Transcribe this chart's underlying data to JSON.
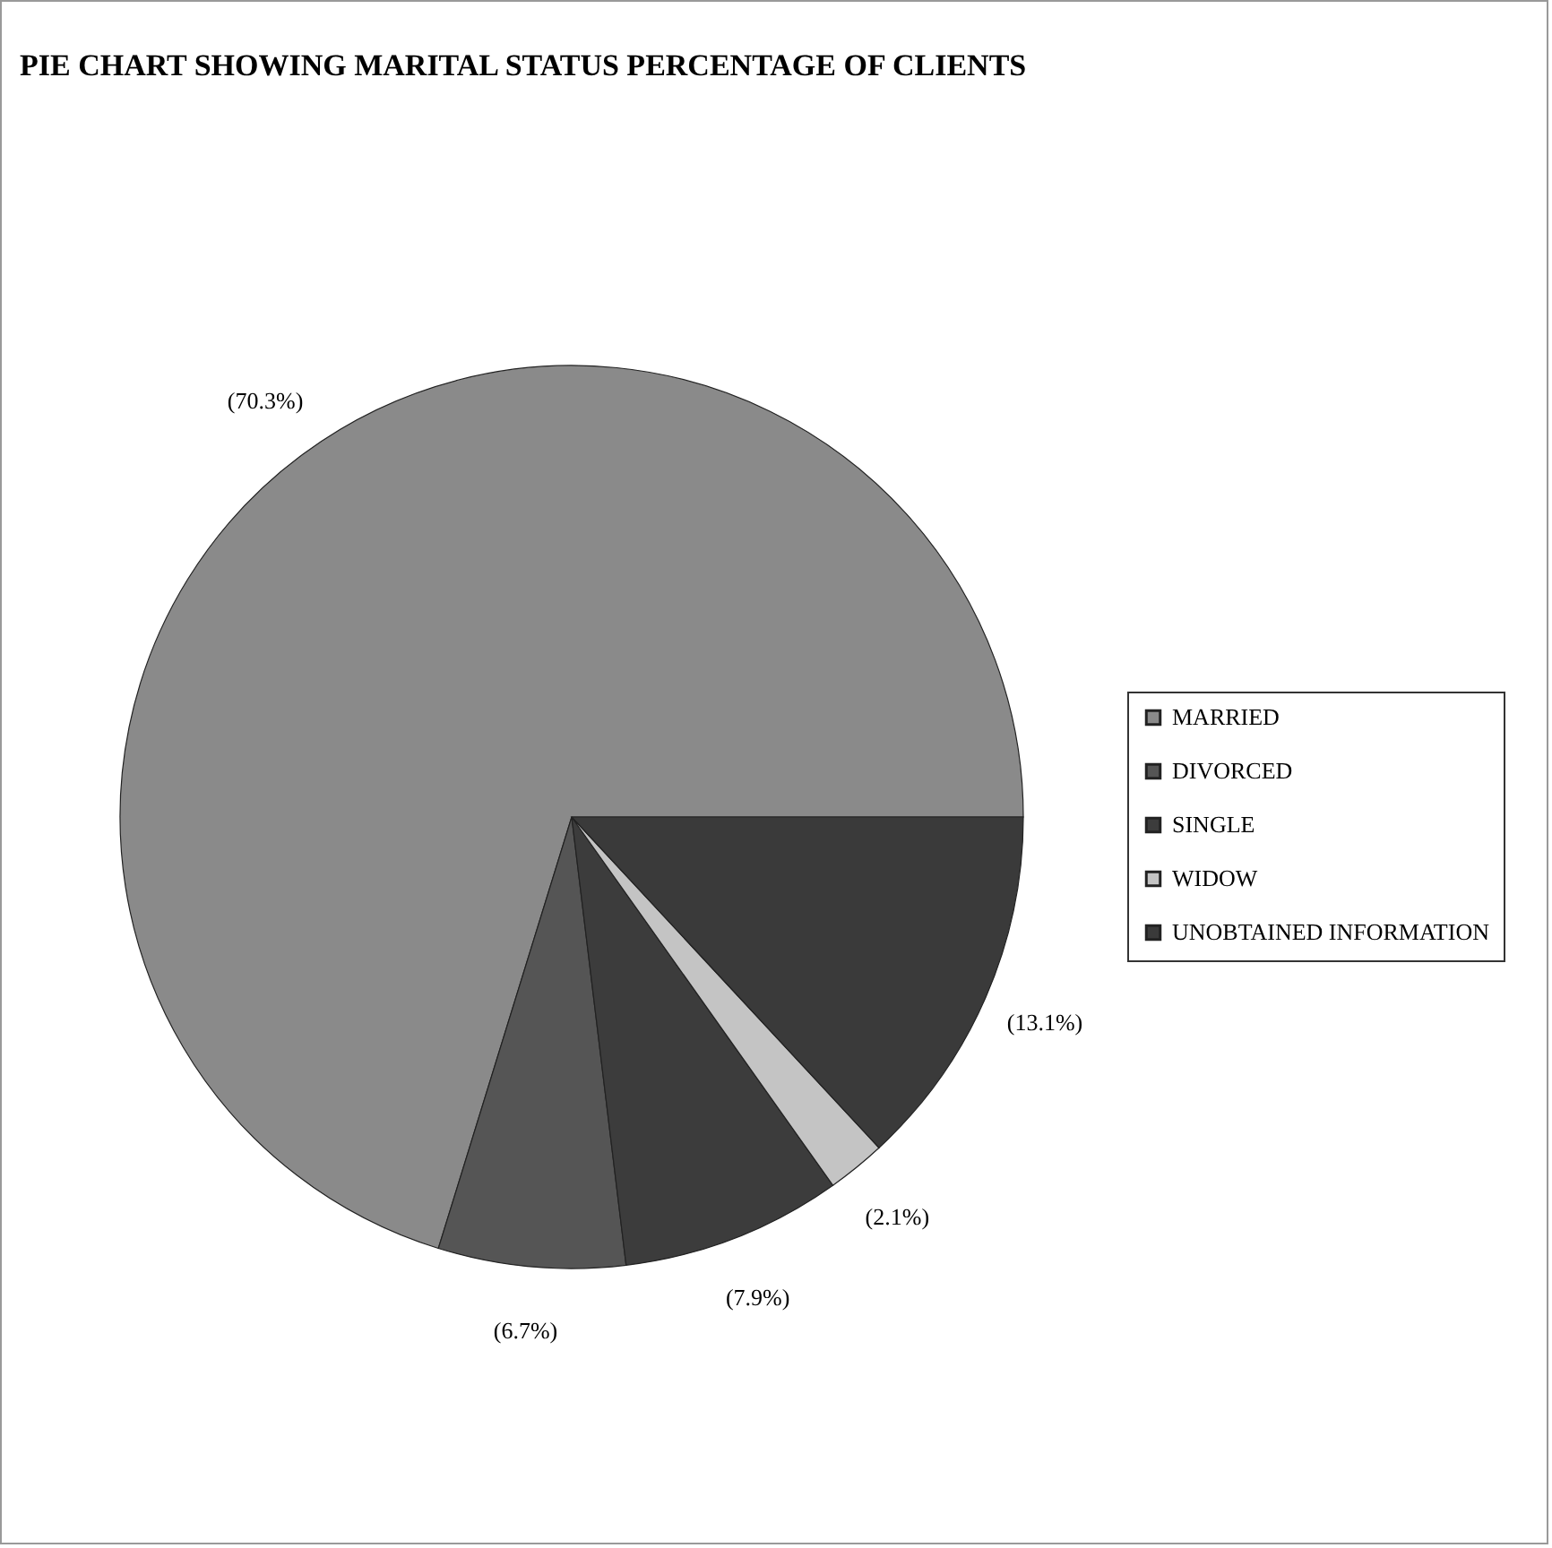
{
  "chart_data": {
    "type": "pie",
    "title": "PIE CHART SHOWING MARITAL STATUS PERCENTAGE OF CLIENTS",
    "categories": [
      "MARRIED",
      "DIVORCED",
      "SINGLE",
      "WIDOW",
      "UNOBTAINED INFORMATION"
    ],
    "values": [
      70.3,
      6.7,
      7.9,
      2.1,
      13.1
    ],
    "colors": [
      "#8a8a8a",
      "#555555",
      "#3c3c3c",
      "#c4c4c4",
      "#3a3a3a"
    ],
    "value_labels": [
      "(70.3%)",
      "(6.7%)",
      "(7.9%)",
      "(2.1%)",
      "(13.1%)"
    ],
    "legend": "right"
  }
}
